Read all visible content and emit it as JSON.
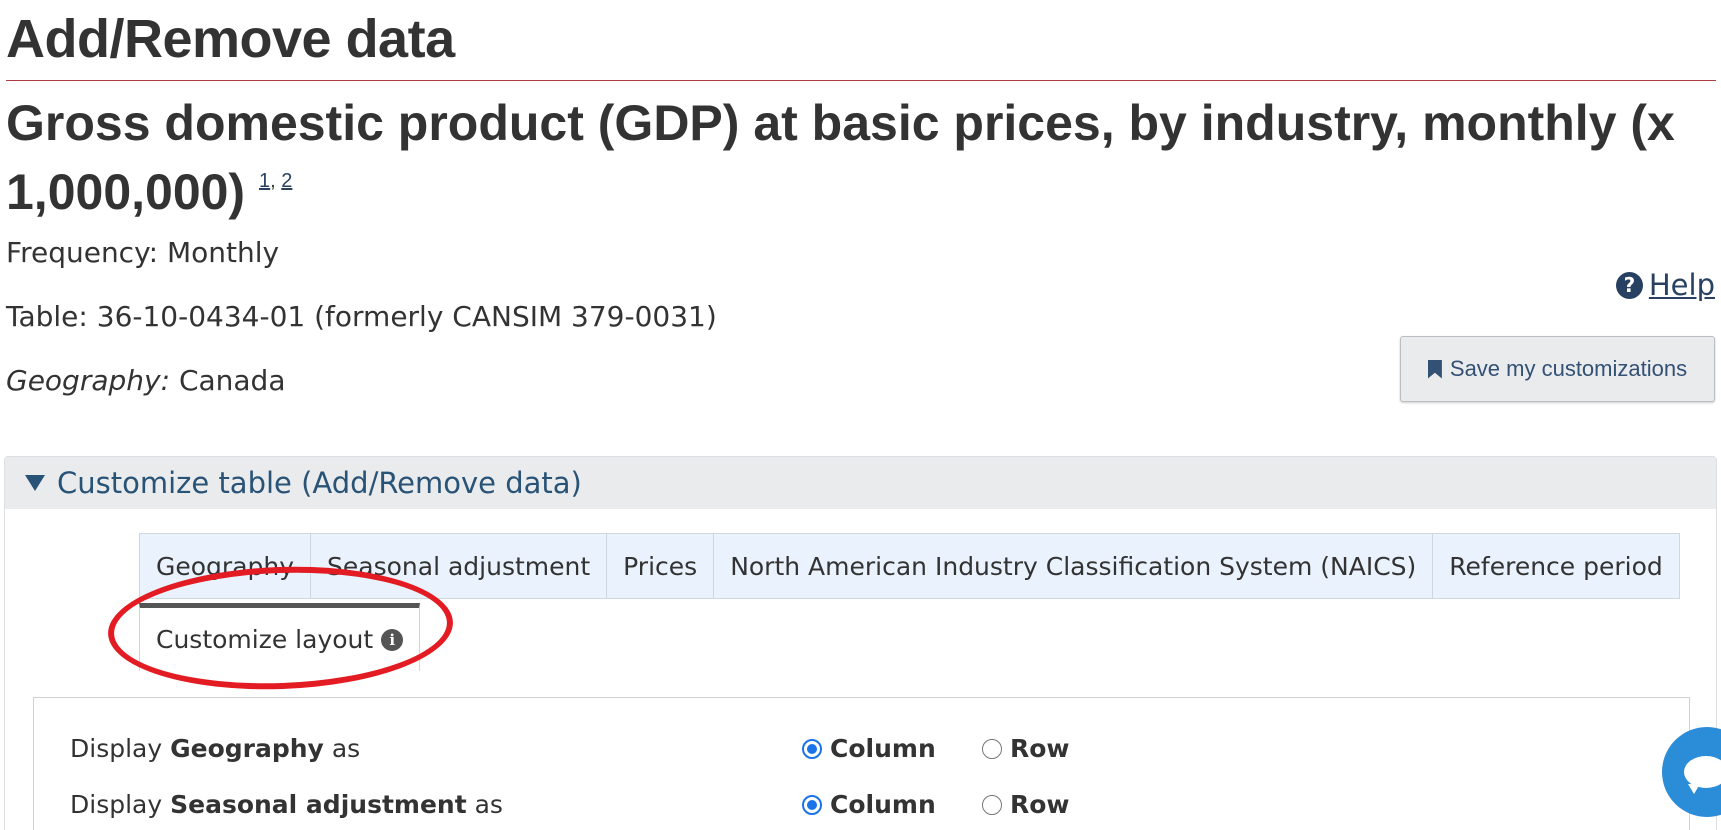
{
  "page": {
    "title": "Add/Remove data",
    "table_title": "Gross domestic product (GDP) at basic prices, by industry, monthly (x 1,000,000)",
    "footnotes": [
      "1",
      "2"
    ],
    "footnote_separator": ","
  },
  "meta": {
    "frequency_label": "Frequency:",
    "frequency_value": "Monthly",
    "table_label": "Table:",
    "table_value": "36-10-0434-01 (formerly CANSIM 379-0031)",
    "geography_label": "Geography:",
    "geography_value": "Canada"
  },
  "actions": {
    "help_label": "Help",
    "help_icon": "question-circle-icon",
    "save_label": "Save my customizations",
    "save_icon": "bookmark-icon"
  },
  "customize": {
    "summary_label": "Customize table (Add/Remove data)",
    "tabs": [
      {
        "label": "Geography"
      },
      {
        "label": "Seasonal adjustment"
      },
      {
        "label": "Prices"
      },
      {
        "label": "North American Industry Classification System (NAICS)"
      },
      {
        "label": "Reference period"
      }
    ],
    "active_tab": {
      "label": "Customize layout",
      "icon": "info-icon"
    },
    "layout_rows": [
      {
        "prefix": "Display",
        "dimension": "Geography",
        "suffix": "as",
        "selected": "Column"
      },
      {
        "prefix": "Display",
        "dimension": "Seasonal adjustment",
        "suffix": "as",
        "selected": "Column"
      }
    ],
    "option_column": "Column",
    "option_row": "Row"
  },
  "annotation": {
    "color": "#e31b23"
  },
  "colors": {
    "link": "#284162",
    "rule": "#af3c43",
    "tab_bg": "#eaf2fd",
    "chat": "#2b8cd8"
  }
}
